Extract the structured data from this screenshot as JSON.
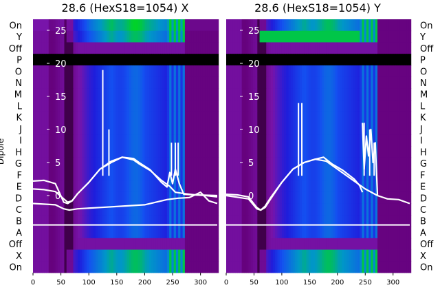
{
  "ylabel": "Dipole",
  "row_labels": [
    "On",
    "Y",
    "Off",
    "P",
    "O",
    "N",
    "M",
    "L",
    "K",
    "J",
    "I",
    "H",
    "G",
    "F",
    "E",
    "D",
    "C",
    "B",
    "A",
    "Off",
    "X",
    "On"
  ],
  "chart_data": [
    {
      "type": "heatmap",
      "title": "28.6 (HexS18=1054) X",
      "xlabel": "",
      "ylabel": "Dipole",
      "xlim": [
        0,
        330
      ],
      "x_ticks": [
        "0",
        "50",
        "100",
        "150",
        "200",
        "250",
        "300"
      ],
      "overlay_ylim": [
        -3.5,
        27
      ],
      "overlay_ticks": [
        "0",
        "5",
        "10",
        "15",
        "20",
        "25"
      ],
      "rows": [
        "On",
        "Y",
        "Off",
        "P",
        "O",
        "N",
        "M",
        "L",
        "K",
        "J",
        "I",
        "H",
        "G",
        "F",
        "E",
        "D",
        "C",
        "B",
        "A",
        "Off",
        "X",
        "On"
      ],
      "colormap": "purple-blue-green",
      "series": [
        {
          "name": "",
          "color": "#ffffff",
          "x": [
            0,
            20,
            40,
            55,
            62,
            70,
            80,
            100,
            120,
            140,
            160,
            180,
            190,
            210,
            230,
            245,
            255,
            270,
            290,
            310,
            330
          ],
          "y": [
            1,
            0.9,
            0.6,
            -0.5,
            -1,
            -0.8,
            0.3,
            2,
            4,
            5.2,
            5.8,
            5.4,
            4.8,
            3.8,
            2.3,
            1.4,
            0.5,
            0.3,
            0.1,
            0,
            -0.2
          ]
        },
        {
          "name": "",
          "color": "#ffffff",
          "x": [
            0,
            20,
            40,
            55,
            62,
            70,
            80,
            100,
            120,
            130,
            140,
            160,
            180,
            190,
            210,
            230,
            240,
            245,
            250,
            255,
            262,
            270,
            290,
            330
          ],
          "y": [
            2.2,
            2.3,
            1.8,
            -1,
            -1.2,
            -0.8,
            0.3,
            2,
            4,
            4.5,
            5,
            5.8,
            5.6,
            5,
            3.9,
            2,
            1.3,
            3.5,
            1.8,
            4,
            1.8,
            0.2,
            0.1,
            0
          ]
        },
        {
          "name": "",
          "color": "#ffffff",
          "x": [
            0,
            40,
            55,
            65,
            80,
            120,
            160,
            200,
            240,
            260,
            280,
            300,
            315,
            330
          ],
          "y": [
            -1.2,
            -1.4,
            -2,
            -2.2,
            -2,
            -1.8,
            -1.6,
            -1.4,
            -0.6,
            -0.4,
            -0.3,
            0.5,
            -0.8,
            -1.2
          ]
        }
      ],
      "spikes_x": [
        125,
        136,
        248,
        255,
        260
      ],
      "spikes_y": [
        19,
        10,
        8,
        8,
        8
      ],
      "hline_y": -3.5
    },
    {
      "type": "heatmap",
      "title": "28.6 (HexS18=1054) Y",
      "xlabel": "",
      "ylabel": "",
      "xlim": [
        0,
        330
      ],
      "x_ticks": [
        "0",
        "50",
        "100",
        "150",
        "200",
        "250",
        "300"
      ],
      "overlay_ylim": [
        -3.5,
        27
      ],
      "overlay_ticks": [
        "0",
        "5",
        "10",
        "15",
        "20",
        "25"
      ],
      "rows": [
        "On",
        "Y",
        "Off",
        "P",
        "O",
        "N",
        "M",
        "L",
        "K",
        "J",
        "I",
        "H",
        "G",
        "F",
        "E",
        "D",
        "C",
        "B",
        "A",
        "Off",
        "X",
        "On"
      ],
      "colormap": "purple-blue-green",
      "series": [
        {
          "name": "",
          "color": "#ffffff",
          "x": [
            0,
            20,
            40,
            55,
            62,
            70,
            80,
            100,
            120,
            140,
            160,
            175,
            190,
            210,
            230,
            240,
            245
          ],
          "y": [
            0.2,
            0.1,
            -0.2,
            -1.8,
            -2.2,
            -1.8,
            -0.5,
            2,
            4,
            5,
            5.5,
            5.8,
            4.8,
            3.8,
            2.5,
            1.5,
            0.5
          ]
        },
        {
          "name": "",
          "color": "#ffffff",
          "x": [
            245,
            248,
            252,
            256,
            260,
            264,
            268,
            272
          ],
          "y": [
            11,
            4,
            9,
            6,
            10,
            5,
            8,
            0
          ]
        },
        {
          "name": "",
          "color": "#ffffff",
          "x": [
            0,
            40,
            55,
            62,
            70,
            80,
            100,
            120,
            140,
            160,
            180,
            200,
            230,
            250,
            272,
            290,
            310,
            330
          ],
          "y": [
            0,
            -0.5,
            -2,
            -2.2,
            -1.6,
            -0.3,
            2,
            4,
            5,
            5.5,
            5.2,
            4,
            2.2,
            1,
            0,
            -0.5,
            -0.6,
            -1.2
          ]
        }
      ],
      "spikes_x": [
        130,
        136,
        248,
        258,
        266
      ],
      "spikes_y": [
        14,
        14,
        11,
        10,
        8
      ],
      "hline_y": -3.5
    }
  ]
}
